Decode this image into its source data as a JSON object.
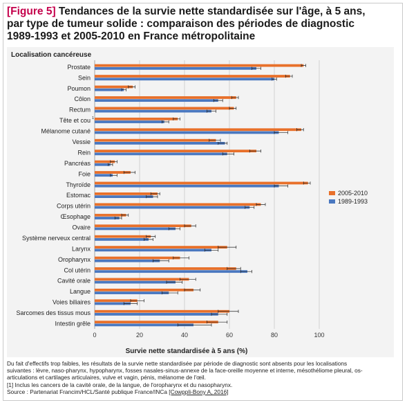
{
  "figure": {
    "label": "[Figure 5]",
    "title_lines": [
      " Tendances de la survie nette standardisée sur l'âge, à 5 ans,",
      "par type de tumeur solide : comparaison des périodes de diagnostic",
      "1989-1993 et 2005-2010 en France métropolitaine"
    ]
  },
  "chart_data": {
    "type": "bar",
    "orientation": "horizontal",
    "category_axis_title": "Localisation cancéreuse",
    "xlabel": "Survie nette standardisée à 5 ans (%)",
    "xlim": [
      0,
      100
    ],
    "xticks": [
      0,
      20,
      40,
      60,
      80,
      100
    ],
    "grid": true,
    "legend_position": "right",
    "categories": [
      "Prostate",
      "Sein",
      "Poumon",
      "Côlon",
      "Rectum",
      "Tête et cou",
      "Mélanome cutané",
      "Vessie",
      "Rein",
      "Pancréas",
      "Foie",
      "Thyroïde",
      "Estomac",
      "Corps utérin",
      "Œsophage",
      "Ovaire",
      "Système nerveux central",
      "Larynx",
      "Oropharynx",
      "Col utérin",
      "Cavité orale",
      "Langue",
      "Voies biliaires",
      "Sarcomes des tissus mous",
      "Intestin grêle"
    ],
    "category_markers": [
      "",
      "",
      "",
      "",
      "",
      "1",
      "",
      "",
      "",
      "",
      "",
      "",
      "",
      "",
      "",
      "",
      "",
      "",
      "",
      "",
      "",
      "",
      "",
      "",
      ""
    ],
    "series": [
      {
        "name": "2005-2010",
        "color": "#e8702a",
        "values": [
          93,
          87,
          17,
          63,
          62,
          37,
          92,
          54,
          72,
          9,
          16,
          95,
          28,
          74,
          14,
          43,
          25,
          59,
          38,
          63,
          42,
          44,
          19,
          60,
          55
        ],
        "error_low": [
          92,
          85,
          15,
          61,
          60,
          35,
          90,
          51,
          69,
          7,
          13,
          93,
          25,
          72,
          12,
          40,
          23,
          55,
          35,
          59,
          38,
          40,
          16,
          55,
          50
        ],
        "error_high": [
          94,
          88,
          18,
          64,
          63,
          38,
          93,
          56,
          74,
          10,
          18,
          96,
          29,
          76,
          15,
          45,
          27,
          63,
          42,
          65,
          45,
          47,
          22,
          64,
          59
        ]
      },
      {
        "name": "1989-1993",
        "color": "#4a78c0",
        "values": [
          72,
          80,
          13,
          55,
          52,
          31,
          82,
          58,
          59,
          7,
          8,
          82,
          26,
          69,
          11,
          36,
          24,
          52,
          29,
          68,
          36,
          33,
          16,
          55,
          44
        ],
        "error_low": [
          70,
          79,
          12,
          53,
          50,
          30,
          80,
          55,
          57,
          6,
          7,
          80,
          23,
          67,
          9,
          33,
          22,
          49,
          26,
          65,
          32,
          30,
          13,
          52,
          37
        ],
        "error_high": [
          74,
          81,
          14,
          57,
          54,
          33,
          86,
          59,
          62,
          8,
          10,
          86,
          28,
          71,
          12,
          38,
          26,
          55,
          33,
          70,
          39,
          37,
          19,
          59,
          52
        ]
      }
    ]
  },
  "notes": {
    "line1": "Du fait d'effectifs trop faibles, les résultats de la survie nette standardisée par période de diagnostic sont absents pour les localisations",
    "line2": "suivantes : lèvre, naso-pharynx, hypopharynx, fosses nasales-sinus-annexe de la face-oreille moyenne et interne, mésothéliome pleural, os-",
    "line3": "articulations et cartilages articulaires, vulve et vagin, pénis, mélanome de l'œil.",
    "footnote": "[1] Inclus les cancers de la cavité orale, de la langue, de l'oropharynx et du nasopharynx.",
    "source_prefix": "Source : Partenariat Francim/HCL/Santé publique France/INCa ",
    "source_ref": "[Cowppli-Bony A, 2016]"
  }
}
